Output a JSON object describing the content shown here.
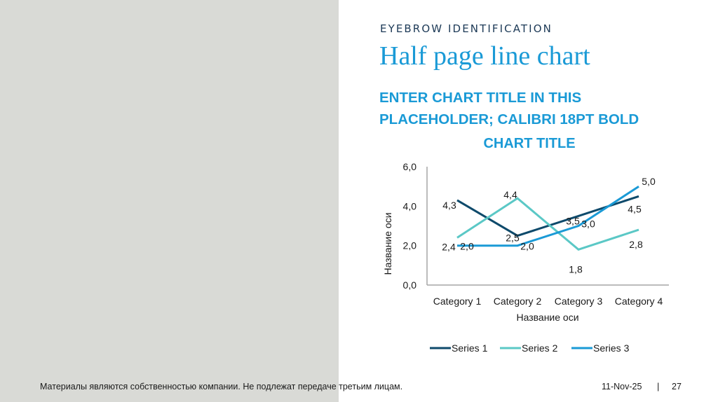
{
  "slide": {
    "eyebrow": "EYEBROW IDENTIFICATION",
    "title": "Half page line chart",
    "chart_placeholder_line1": "ENTER CHART TITLE IN THIS",
    "chart_placeholder_line2": "PLACEHOLDER; CALIBRI 18PT BOLD",
    "left_panel_color": "#d9dad6",
    "accent_color": "#1a9ad6"
  },
  "footer": {
    "disclaimer": "Материалы являются собственностью компании. Не подлежат передаче третьим лицам.",
    "date": "11-Nov-25",
    "separator": "|",
    "page_number": "27"
  },
  "chart_data": {
    "type": "line",
    "title": "CHART TITLE",
    "categories": [
      "Category 1",
      "Category 2",
      "Category 3",
      "Category 4"
    ],
    "series": [
      {
        "name": "Series 1",
        "color": "#0e4a6b",
        "values": [
          4.3,
          2.5,
          3.5,
          4.5
        ],
        "labels": [
          "4,3",
          "2,5",
          "3,5",
          "4,5"
        ]
      },
      {
        "name": "Series 2",
        "color": "#5bc8c6",
        "values": [
          2.4,
          4.4,
          1.8,
          2.8
        ],
        "labels": [
          "2,4",
          "4,4",
          "1,8",
          "2,8"
        ]
      },
      {
        "name": "Series 3",
        "color": "#1a9ad6",
        "values": [
          2.0,
          2.0,
          3.0,
          5.0
        ],
        "labels": [
          "2,0",
          "2,0",
          "3,0",
          "5,0"
        ]
      }
    ],
    "xlabel": "Название оси",
    "ylabel": "Название оси",
    "ylim": [
      0,
      6
    ],
    "yticks": [
      "0,0",
      "2,0",
      "4,0",
      "6,0"
    ],
    "grid": false,
    "legend_position": "bottom"
  }
}
